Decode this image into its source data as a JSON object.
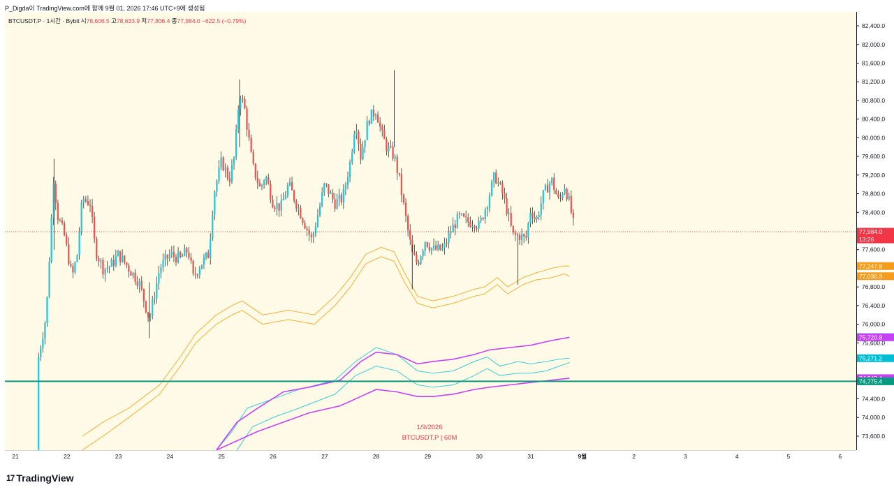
{
  "header": {
    "text": "P_Digda이 TradingView.com에 함께 9월 01, 2026 17:46 UTC+9에 생성됨"
  },
  "legend": {
    "symbol": "BTCUSDT.P · 1시간 · Bybit",
    "open_label": "시",
    "open": "78,606.5",
    "high_label": "고",
    "high": "78,633.9",
    "low_label": "저",
    "low": "77,806.4",
    "close_label": "종",
    "close": "77,984.0",
    "change": "−622.5 (−0.79%)"
  },
  "watermark": {
    "date": "1/9/2026",
    "symbol": "BTCUSDT.P | 60M"
  },
  "logo": {
    "text": "TradingView",
    "mark": "17"
  },
  "colors": {
    "up": "#26c6da",
    "down": "#ef5350",
    "orange": "#f5a623",
    "cyan": "#26c6da",
    "magenta": "#c542f5",
    "hline": "#089981",
    "zone_fill": "#c8f0c0",
    "zone_stroke": "#4caf50",
    "last_price": "#f23645",
    "chart_bg": "#fffbe6"
  },
  "chart_data": {
    "type": "candlestick",
    "title": "BTCUSDT.P · 1시간 · Bybit",
    "ylim": [
      73300,
      82700
    ],
    "y_ticks": [
      "82,400.0",
      "82,000.0",
      "81,600.0",
      "81,200.0",
      "80,800.0",
      "80,400.0",
      "80,000.0",
      "79,600.0",
      "79,200.0",
      "78,800.0",
      "78,400.0",
      "78,000.0",
      "77,600.0",
      "76,800.0",
      "76,400.0",
      "76,000.0",
      "75,600.0",
      "74,400.0",
      "74,000.0",
      "73,600.0"
    ],
    "x_ticks": [
      "21",
      "22",
      "23",
      "24",
      "25",
      "26",
      "27",
      "28",
      "29",
      "30",
      "31",
      "9월",
      "2",
      "3",
      "4",
      "5",
      "6"
    ],
    "price_badges": [
      {
        "label": "77,984.0",
        "sub": "13:26",
        "value": 77984.0,
        "color": "#f23645"
      },
      {
        "label": "77,247.8",
        "value": 77247.8,
        "color": "#f59c1a"
      },
      {
        "label": "77,030.3",
        "value": 77030.3,
        "color": "#f59c1a"
      },
      {
        "label": "75,722.5",
        "value": 75722.5,
        "color": "#00bcd4"
      },
      {
        "label": "75,720.8",
        "value": 75720.8,
        "color": "#c542f5"
      },
      {
        "label": "75,271.2",
        "value": 75271.2,
        "color": "#00bcd4"
      },
      {
        "label": "74,843.4",
        "value": 74843.4,
        "color": "#c542f5"
      },
      {
        "label": "74,775.4",
        "value": 74775.4,
        "color": "#089981"
      }
    ],
    "horizontal_line": 74775.4,
    "last_price": 77984.0,
    "zones": [
      {
        "x_start": 21.51,
        "x_end": 23.29,
        "y_low": 76240,
        "y_high": 76400
      },
      {
        "x_start": 21.51,
        "x_end": 23.29,
        "y_low": 74810,
        "y_high": 74880
      }
    ],
    "candle_anchors": [
      [
        0.0,
        73300
      ],
      [
        0.1,
        73700
      ],
      [
        0.25,
        74300
      ],
      [
        0.45,
        75300
      ],
      [
        0.6,
        76200
      ],
      [
        0.75,
        79300
      ],
      [
        0.8,
        78400
      ],
      [
        0.95,
        77900
      ],
      [
        1.1,
        77000
      ],
      [
        1.2,
        77500
      ],
      [
        1.3,
        78700
      ],
      [
        1.45,
        78600
      ],
      [
        1.55,
        77600
      ],
      [
        1.7,
        77200
      ],
      [
        1.85,
        77250
      ],
      [
        2.0,
        77500
      ],
      [
        2.2,
        77200
      ],
      [
        2.4,
        76900
      ],
      [
        2.6,
        76100
      ],
      [
        2.8,
        77200
      ],
      [
        3.0,
        77500
      ],
      [
        3.2,
        77400
      ],
      [
        3.35,
        77600
      ],
      [
        3.45,
        77000
      ],
      [
        3.6,
        77300
      ],
      [
        3.75,
        77500
      ],
      [
        3.85,
        78800
      ],
      [
        4.0,
        79500
      ],
      [
        4.15,
        79100
      ],
      [
        4.25,
        79600
      ],
      [
        4.35,
        81000
      ],
      [
        4.45,
        80600
      ],
      [
        4.6,
        79400
      ],
      [
        4.75,
        78900
      ],
      [
        4.85,
        79200
      ],
      [
        5.0,
        78600
      ],
      [
        5.15,
        78500
      ],
      [
        5.3,
        79000
      ],
      [
        5.45,
        78600
      ],
      [
        5.6,
        78200
      ],
      [
        5.75,
        77800
      ],
      [
        5.9,
        78500
      ],
      [
        6.0,
        79000
      ],
      [
        6.2,
        78600
      ],
      [
        6.35,
        78700
      ],
      [
        6.5,
        79500
      ],
      [
        6.6,
        80400
      ],
      [
        6.7,
        79600
      ],
      [
        6.85,
        80400
      ],
      [
        7.0,
        80600
      ],
      [
        7.1,
        80100
      ],
      [
        7.2,
        79800
      ],
      [
        7.35,
        79600
      ],
      [
        7.45,
        79100
      ],
      [
        7.6,
        78100
      ],
      [
        7.7,
        77500
      ],
      [
        7.8,
        77300
      ],
      [
        7.95,
        77800
      ],
      [
        8.1,
        77600
      ],
      [
        8.3,
        77600
      ],
      [
        8.45,
        78000
      ],
      [
        8.6,
        78300
      ],
      [
        8.75,
        78200
      ],
      [
        8.9,
        78200
      ],
      [
        9.0,
        78100
      ],
      [
        9.15,
        78600
      ],
      [
        9.3,
        79200
      ],
      [
        9.45,
        78800
      ],
      [
        9.55,
        78400
      ],
      [
        9.65,
        77900
      ],
      [
        9.8,
        77900
      ],
      [
        9.9,
        77800
      ],
      [
        10.0,
        78500
      ],
      [
        10.1,
        78200
      ],
      [
        10.25,
        78800
      ],
      [
        10.4,
        79100
      ],
      [
        10.55,
        78600
      ],
      [
        10.65,
        79000
      ],
      [
        10.75,
        78600
      ],
      [
        10.85,
        78000
      ]
    ],
    "series": [
      {
        "name": "orange upper",
        "color": "#f5a623",
        "points": [
          [
            1.3,
            73600
          ],
          [
            1.7,
            73900
          ],
          [
            2.2,
            74200
          ],
          [
            2.8,
            74700
          ],
          [
            3.2,
            75300
          ],
          [
            3.5,
            75800
          ],
          [
            3.9,
            76200
          ],
          [
            4.2,
            76400
          ],
          [
            4.4,
            76500
          ],
          [
            4.8,
            76200
          ],
          [
            5.3,
            76300
          ],
          [
            5.8,
            76200
          ],
          [
            6.2,
            76600
          ],
          [
            6.5,
            77000
          ],
          [
            6.8,
            77500
          ],
          [
            7.1,
            77650
          ],
          [
            7.35,
            77550
          ],
          [
            7.55,
            77100
          ],
          [
            7.8,
            76600
          ],
          [
            8.1,
            76500
          ],
          [
            8.5,
            76600
          ],
          [
            8.9,
            76750
          ],
          [
            9.1,
            76800
          ],
          [
            9.35,
            77000
          ],
          [
            9.55,
            76800
          ],
          [
            9.85,
            77000
          ],
          [
            10.1,
            77100
          ],
          [
            10.4,
            77200
          ],
          [
            10.65,
            77250
          ],
          [
            10.75,
            77248
          ]
        ]
      },
      {
        "name": "orange lower",
        "color": "#f5a623",
        "points": [
          [
            1.3,
            73300
          ],
          [
            1.7,
            73600
          ],
          [
            2.2,
            74000
          ],
          [
            2.8,
            74500
          ],
          [
            3.2,
            75100
          ],
          [
            3.5,
            75600
          ],
          [
            3.9,
            76000
          ],
          [
            4.2,
            76200
          ],
          [
            4.4,
            76300
          ],
          [
            4.8,
            76000
          ],
          [
            5.3,
            76100
          ],
          [
            5.8,
            76000
          ],
          [
            6.2,
            76400
          ],
          [
            6.5,
            76800
          ],
          [
            6.8,
            77300
          ],
          [
            7.1,
            77450
          ],
          [
            7.35,
            77350
          ],
          [
            7.55,
            76900
          ],
          [
            7.8,
            76450
          ],
          [
            8.1,
            76350
          ],
          [
            8.5,
            76450
          ],
          [
            8.9,
            76600
          ],
          [
            9.1,
            76650
          ],
          [
            9.35,
            76850
          ],
          [
            9.55,
            76650
          ],
          [
            9.85,
            76850
          ],
          [
            10.1,
            76950
          ],
          [
            10.4,
            77000
          ],
          [
            10.65,
            77080
          ],
          [
            10.75,
            77030
          ]
        ]
      },
      {
        "name": "cyan upper",
        "color": "#26c6da",
        "points": [
          [
            3.9,
            73300
          ],
          [
            4.2,
            73700
          ],
          [
            4.5,
            74200
          ],
          [
            5.0,
            74400
          ],
          [
            5.5,
            74600
          ],
          [
            6.2,
            74800
          ],
          [
            6.6,
            75200
          ],
          [
            7.0,
            75500
          ],
          [
            7.4,
            75350
          ],
          [
            7.8,
            75000
          ],
          [
            8.1,
            74950
          ],
          [
            8.5,
            75000
          ],
          [
            8.9,
            75200
          ],
          [
            9.15,
            75300
          ],
          [
            9.4,
            75100
          ],
          [
            9.75,
            75200
          ],
          [
            10.0,
            75150
          ],
          [
            10.3,
            75200
          ],
          [
            10.55,
            75250
          ],
          [
            10.75,
            75271
          ]
        ]
      },
      {
        "name": "cyan lower",
        "color": "#26c6da",
        "points": [
          [
            4.3,
            73300
          ],
          [
            4.6,
            73800
          ],
          [
            5.0,
            74000
          ],
          [
            5.5,
            74200
          ],
          [
            6.2,
            74500
          ],
          [
            6.6,
            74900
          ],
          [
            7.0,
            75100
          ],
          [
            7.4,
            75000
          ],
          [
            7.8,
            74700
          ],
          [
            8.1,
            74650
          ],
          [
            8.5,
            74700
          ],
          [
            8.9,
            74900
          ],
          [
            9.15,
            75050
          ],
          [
            9.4,
            74900
          ],
          [
            9.75,
            74950
          ],
          [
            10.0,
            74950
          ],
          [
            10.3,
            75000
          ],
          [
            10.55,
            75100
          ],
          [
            10.75,
            75180
          ]
        ]
      },
      {
        "name": "magenta upper",
        "color": "#c542f5",
        "points": [
          [
            3.9,
            73300
          ],
          [
            4.3,
            73900
          ],
          [
            4.7,
            74200
          ],
          [
            5.2,
            74550
          ],
          [
            5.7,
            74650
          ],
          [
            6.3,
            74800
          ],
          [
            6.7,
            75200
          ],
          [
            7.0,
            75400
          ],
          [
            7.4,
            75350
          ],
          [
            7.8,
            75150
          ],
          [
            8.1,
            75200
          ],
          [
            8.5,
            75250
          ],
          [
            8.9,
            75350
          ],
          [
            9.2,
            75450
          ],
          [
            9.6,
            75500
          ],
          [
            10.0,
            75550
          ],
          [
            10.4,
            75650
          ],
          [
            10.75,
            75721
          ]
        ]
      },
      {
        "name": "magenta lower",
        "color": "#c542f5",
        "points": [
          [
            3.9,
            73300
          ],
          [
            4.3,
            73500
          ],
          [
            4.7,
            73700
          ],
          [
            5.2,
            73900
          ],
          [
            5.7,
            74100
          ],
          [
            6.3,
            74250
          ],
          [
            6.7,
            74450
          ],
          [
            7.0,
            74600
          ],
          [
            7.4,
            74550
          ],
          [
            7.8,
            74450
          ],
          [
            8.1,
            74450
          ],
          [
            8.5,
            74500
          ],
          [
            8.9,
            74600
          ],
          [
            9.2,
            74650
          ],
          [
            9.6,
            74700
          ],
          [
            10.0,
            74750
          ],
          [
            10.4,
            74800
          ],
          [
            10.75,
            74843
          ]
        ]
      }
    ]
  }
}
